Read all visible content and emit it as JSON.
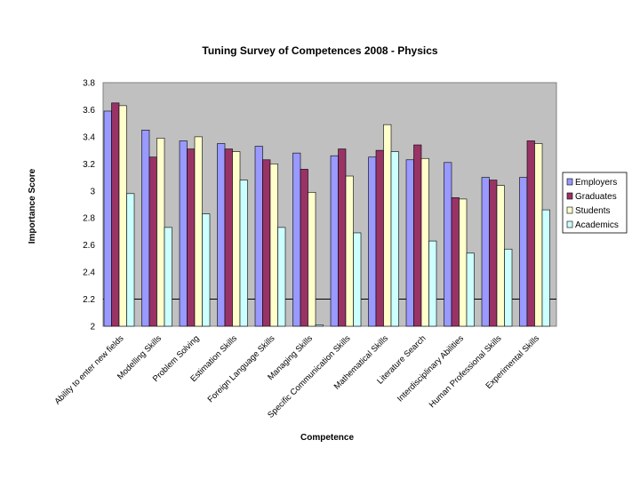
{
  "chart_data": {
    "type": "bar",
    "title": "Tuning Survey of Competences 2008 - Physics",
    "xlabel": "Competence",
    "ylabel": "Importance Score",
    "ylim": [
      2,
      3.8
    ],
    "ytick_step": 0.2,
    "yticks": [
      "2",
      "2.2",
      "2.4",
      "2.6",
      "2.8",
      "3",
      "3.2",
      "3.4",
      "3.6",
      "3.8"
    ],
    "reference_line": 2.2,
    "legend_position": "right",
    "categories": [
      "Ability to enter new fields",
      "Modelling Skills",
      "Problem Solving",
      "Estimation Skills",
      "Foreign Language Skills",
      "Managing Skills",
      "Specific Communication Skills",
      "Mathematical Skills",
      "Literature Search",
      "Interdisciplinary Abilities",
      "Human Professional Skills",
      "Experimental Skills"
    ],
    "series": [
      {
        "name": "Employers",
        "color": "#9999ff",
        "values": [
          3.59,
          3.45,
          3.37,
          3.35,
          3.33,
          3.28,
          3.26,
          3.25,
          3.23,
          3.21,
          3.1,
          3.1
        ]
      },
      {
        "name": "Graduates",
        "color": "#993366",
        "values": [
          3.65,
          3.25,
          3.31,
          3.31,
          3.23,
          3.16,
          3.31,
          3.3,
          3.34,
          2.95,
          3.08,
          3.37
        ]
      },
      {
        "name": "Students",
        "color": "#ffffcc",
        "values": [
          3.63,
          3.39,
          3.4,
          3.29,
          3.2,
          2.99,
          3.11,
          3.49,
          3.24,
          2.94,
          3.04,
          3.35
        ]
      },
      {
        "name": "Academics",
        "color": "#ccffff",
        "values": [
          2.98,
          2.73,
          2.83,
          3.08,
          2.73,
          2.01,
          2.69,
          3.29,
          2.63,
          2.54,
          2.57,
          2.86
        ]
      }
    ]
  }
}
